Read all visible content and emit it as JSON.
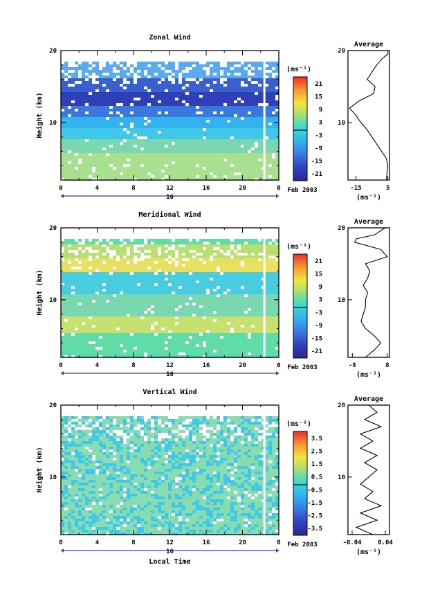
{
  "chart_data": [
    {
      "type": "heatmap",
      "title": "Zonal Wind",
      "ylabel": "Height (km)",
      "xlabel": "",
      "xlim": [
        0,
        24
      ],
      "ylim": [
        2,
        20
      ],
      "x_ticks": [
        "0",
        "4",
        "8",
        "12",
        "16",
        "20",
        "0"
      ],
      "y_ticks": [
        "10",
        "20"
      ],
      "date_marker": "16",
      "date_label": "Feb 2003",
      "unit": "(ms⁻¹)",
      "colorbar": {
        "ticks": [
          "21",
          "15",
          "9",
          "3",
          "-3",
          "-9",
          "-15",
          "-21"
        ],
        "range": [
          -24,
          24
        ]
      },
      "profile": {
        "title": "Average",
        "xlabel": "(ms⁻¹)",
        "x_ticks": [
          "-15",
          "5"
        ],
        "xlim": [
          -20,
          6
        ],
        "y_ticks": [
          "10",
          "20"
        ],
        "heights": [
          2,
          3,
          4,
          5,
          6,
          7,
          8,
          9,
          10,
          11,
          12,
          13,
          14,
          15,
          16,
          17,
          18,
          19,
          19.5,
          20
        ],
        "values": [
          4,
          4.5,
          5,
          4,
          1,
          -2,
          -5,
          -8,
          -12,
          -15,
          -19,
          -13,
          -4,
          -3,
          -8,
          -5,
          -2,
          2,
          5,
          5
        ]
      }
    },
    {
      "type": "heatmap",
      "title": "Meridional Wind",
      "ylabel": "Height (km)",
      "xlabel": "",
      "xlim": [
        0,
        24
      ],
      "ylim": [
        2,
        20
      ],
      "x_ticks": [
        "0",
        "4",
        "8",
        "12",
        "16",
        "20",
        "0"
      ],
      "y_ticks": [
        "10",
        "20"
      ],
      "date_marker": "16",
      "date_label": "Feb 2003",
      "unit": "(ms⁻¹)",
      "colorbar": {
        "ticks": [
          "21",
          "15",
          "9",
          "3",
          "-3",
          "-9",
          "-15",
          "-21"
        ],
        "range": [
          -24,
          24
        ]
      },
      "profile": {
        "title": "Average",
        "xlabel": "(ms⁻¹)",
        "x_ticks": [
          "-8",
          "8"
        ],
        "xlim": [
          -10,
          9
        ],
        "y_ticks": [
          "10",
          "20"
        ],
        "heights": [
          2,
          3,
          4,
          5,
          6,
          7,
          8,
          9,
          10,
          11,
          12,
          13,
          14,
          15,
          16,
          17,
          18,
          18.5,
          19,
          20
        ],
        "values": [
          -2,
          2,
          5,
          2,
          -2,
          -4,
          -3,
          -2,
          -2,
          -1,
          -3,
          -1,
          0,
          -2,
          8,
          5,
          -7,
          -6,
          2,
          7
        ]
      }
    },
    {
      "type": "heatmap",
      "title": "Vertical Wind",
      "ylabel": "Height (km)",
      "xlabel": "Local Time",
      "xlim": [
        0,
        24
      ],
      "ylim": [
        2,
        20
      ],
      "x_ticks": [
        "0",
        "4",
        "8",
        "12",
        "16",
        "20",
        "0"
      ],
      "y_ticks": [
        "10",
        "20"
      ],
      "date_marker": "16",
      "date_label": "Feb 2003",
      "unit": "(ms⁻¹)",
      "colorbar": {
        "ticks": [
          "3.5",
          "2.5",
          "1.5",
          "0.5",
          "-0.5",
          "-1.5",
          "-2.5",
          "-3.5"
        ],
        "range": [
          -4,
          4
        ]
      },
      "profile": {
        "title": "Average",
        "xlabel": "(ms⁻¹)",
        "x_ticks": [
          "-0.04",
          "0.04"
        ],
        "xlim": [
          -0.05,
          0.05
        ],
        "y_ticks": [
          "10",
          "20"
        ],
        "heights": [
          2,
          3,
          4,
          5,
          6,
          7,
          8,
          9,
          10,
          11,
          12,
          13,
          14,
          15,
          16,
          17,
          18,
          19,
          20
        ],
        "values": [
          0.01,
          -0.03,
          0.02,
          -0.02,
          0.03,
          -0.01,
          0.01,
          -0.02,
          0.0,
          0.02,
          -0.01,
          0.02,
          -0.02,
          0.01,
          -0.02,
          0.03,
          -0.01,
          0.02,
          0.0
        ]
      }
    }
  ]
}
